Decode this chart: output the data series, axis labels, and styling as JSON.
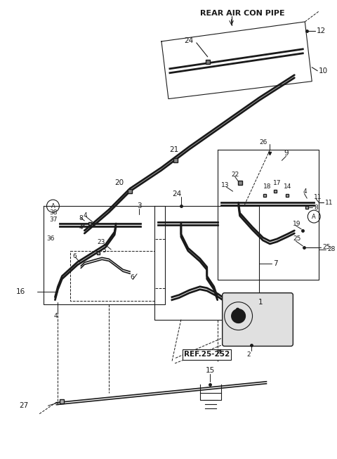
{
  "bg_color": "#ffffff",
  "line_color": "#1a1a1a",
  "fig_width": 4.8,
  "fig_height": 6.53,
  "dpi": 100,
  "rear_air_con_label": "REAR AIR CON PIPE",
  "ref_label": "REF.25-252"
}
